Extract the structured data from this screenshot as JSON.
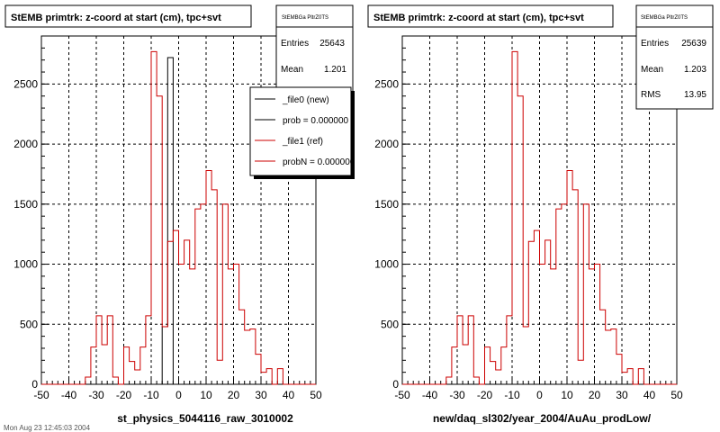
{
  "chart_data": [
    {
      "type": "step-histogram",
      "title": "StEMB primtrk: z-coord at start (cm), tpc+svt",
      "xlabel": "st_physics_5044116_raw_3010002",
      "ylabel": "",
      "xlim": [
        -50,
        50
      ],
      "ylim": [
        0,
        2900
      ],
      "x_ticks": [
        -50,
        -40,
        -30,
        -20,
        -10,
        0,
        10,
        20,
        30,
        40,
        50
      ],
      "y_ticks": [
        0,
        500,
        1000,
        1500,
        2000,
        2500
      ],
      "grid": true,
      "bin_edges": [
        -50,
        -48,
        -46,
        -44,
        -42,
        -40,
        -38,
        -36,
        -34,
        -32,
        -30,
        -28,
        -26,
        -24,
        -22,
        -20,
        -18,
        -16,
        -14,
        -12,
        -10,
        -8,
        -6,
        -4,
        -2,
        0,
        2,
        4,
        6,
        8,
        10,
        12,
        14,
        16,
        18,
        20,
        22,
        24,
        26,
        28,
        30,
        32,
        34,
        36,
        38,
        40,
        42,
        44,
        46,
        48,
        50
      ],
      "series": [
        {
          "name": "_file0 (new)",
          "color": "#000000",
          "values": [
            0,
            0,
            0,
            0,
            0,
            0,
            0,
            0,
            0,
            0,
            0,
            0,
            0,
            0,
            0,
            0,
            0,
            0,
            0,
            0,
            0,
            0,
            480,
            2720,
            0,
            0,
            0,
            0,
            0,
            0,
            0,
            0,
            0,
            0,
            0,
            0,
            0,
            0,
            0,
            0,
            0,
            0,
            0,
            0,
            0,
            0,
            0,
            0,
            0,
            0
          ]
        },
        {
          "name": "_file1 (ref)",
          "color": "#cc0000",
          "values": [
            0,
            0,
            0,
            0,
            0,
            0,
            0,
            0,
            60,
            310,
            570,
            330,
            570,
            60,
            0,
            310,
            190,
            120,
            310,
            570,
            2770,
            2400,
            480,
            1190,
            1280,
            1000,
            1200,
            960,
            1460,
            1500,
            1780,
            1620,
            200,
            1500,
            960,
            1000,
            620,
            450,
            460,
            250,
            100,
            130,
            0,
            130,
            0,
            0,
            0,
            0,
            0,
            0
          ]
        }
      ],
      "stats": {
        "header": "StEMBGa PltrZ0TS",
        "entries": "25643",
        "mean": "1.201"
      },
      "legend": {
        "placement": "top-right",
        "entries": [
          "_file0 (new)",
          "prob = 0.000000",
          "_file1 (ref)",
          "probN = 0.000000"
        ]
      }
    },
    {
      "type": "step-histogram",
      "title": "StEMB primtrk: z-coord at start (cm), tpc+svt",
      "xlabel": "new/daq_sl302/year_2004/AuAu_prodLow/",
      "ylabel": "",
      "xlim": [
        -50,
        50
      ],
      "ylim": [
        0,
        2900
      ],
      "x_ticks": [
        -50,
        -40,
        -30,
        -20,
        -10,
        0,
        10,
        20,
        30,
        40,
        50
      ],
      "y_ticks": [
        0,
        500,
        1000,
        1500,
        2000,
        2500
      ],
      "grid": true,
      "bin_edges": [
        -50,
        -48,
        -46,
        -44,
        -42,
        -40,
        -38,
        -36,
        -34,
        -32,
        -30,
        -28,
        -26,
        -24,
        -22,
        -20,
        -18,
        -16,
        -14,
        -12,
        -10,
        -8,
        -6,
        -4,
        -2,
        0,
        2,
        4,
        6,
        8,
        10,
        12,
        14,
        16,
        18,
        20,
        22,
        24,
        26,
        28,
        30,
        32,
        34,
        36,
        38,
        40,
        42,
        44,
        46,
        48,
        50
      ],
      "series": [
        {
          "name": "_file1 (ref)",
          "color": "#cc0000",
          "values": [
            0,
            0,
            0,
            0,
            0,
            0,
            0,
            0,
            60,
            310,
            570,
            330,
            570,
            60,
            0,
            310,
            190,
            120,
            310,
            570,
            2770,
            2400,
            480,
            1190,
            1280,
            1000,
            1200,
            960,
            1460,
            1500,
            1780,
            1620,
            200,
            1500,
            960,
            1000,
            620,
            450,
            460,
            250,
            100,
            130,
            0,
            130,
            0,
            0,
            0,
            0,
            0,
            0
          ]
        }
      ],
      "stats": {
        "header": "StEMBGa PltrZ0TS",
        "entries": "25639",
        "mean": "1.203",
        "rms": "13.95"
      }
    }
  ],
  "footer_text": "Mon Aug 23 12:45:03 2004",
  "stat_labels": {
    "entries": "Entries",
    "mean": "Mean",
    "rms": "RMS"
  }
}
